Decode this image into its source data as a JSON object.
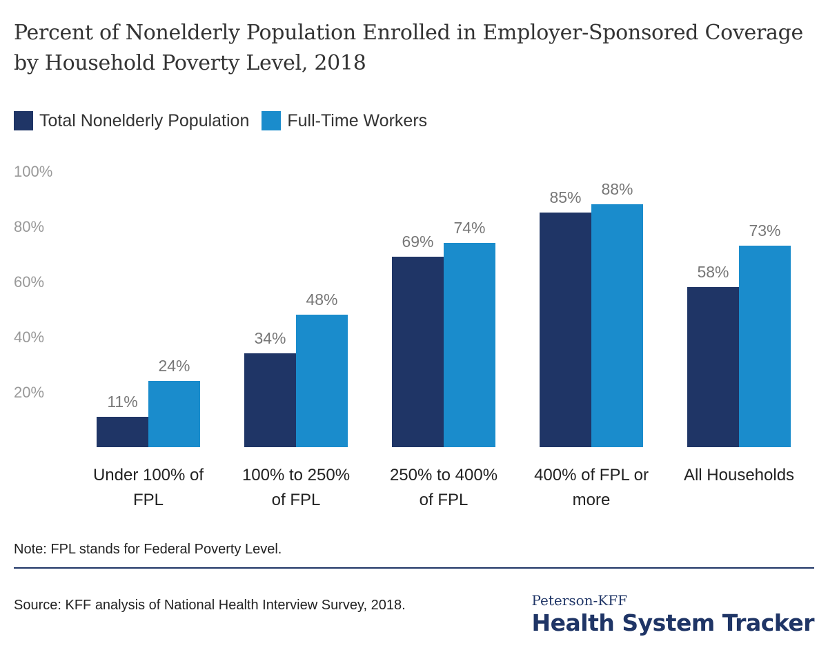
{
  "chart_data": {
    "type": "bar",
    "title": "Percent of Nonelderly Population Enrolled in Employer-Sponsored Coverage by Household Poverty Level, 2018",
    "categories": [
      [
        "Under 100% of",
        "FPL"
      ],
      [
        "100% to 250%",
        "of FPL"
      ],
      [
        "250% to 400%",
        "of FPL"
      ],
      [
        "400% of FPL or",
        "more"
      ],
      [
        "All Households"
      ]
    ],
    "series": [
      {
        "name": "Total Nonelderly Population",
        "values": [
          11,
          34,
          69,
          85,
          58
        ],
        "labels": [
          "11%",
          "34%",
          "69%",
          "85%",
          "58%"
        ],
        "color": "#1f3566"
      },
      {
        "name": "Full-Time Workers",
        "values": [
          24,
          48,
          74,
          88,
          73
        ],
        "labels": [
          "24%",
          "48%",
          "74%",
          "88%",
          "73%"
        ],
        "color": "#1a8ccc"
      }
    ],
    "y_ticks": [
      20,
      40,
      60,
      80,
      100
    ],
    "y_tick_labels": [
      "20%",
      "40%",
      "60%",
      "80%",
      "100%"
    ],
    "ylim": [
      0,
      100
    ],
    "xlabel": "",
    "ylabel": "",
    "grid": false,
    "legend_position": "top-left"
  },
  "note": "Note: FPL stands for Federal Poverty Level.",
  "source": "Source: KFF analysis of National Health Interview Survey, 2018.",
  "logo": {
    "top": "Peterson-KFF",
    "bottom": "Health System Tracker"
  },
  "colors": {
    "label_gray": "#777777",
    "tick_gray": "#999999",
    "rule": "#1f3566"
  }
}
